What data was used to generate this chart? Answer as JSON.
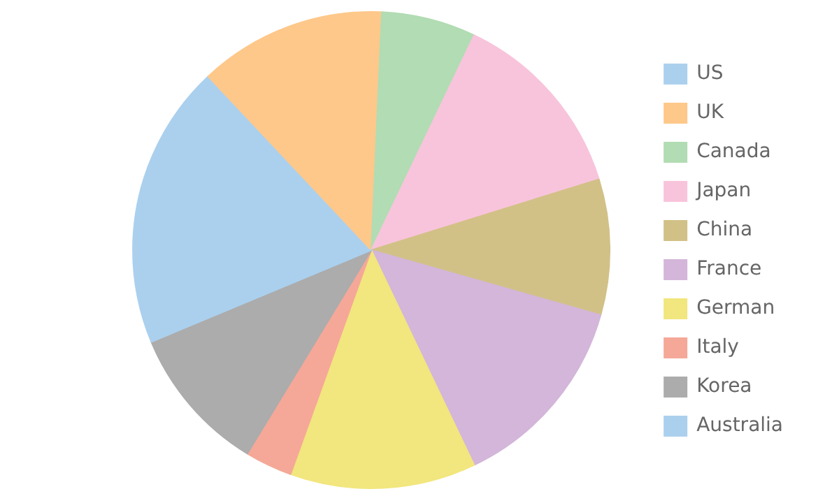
{
  "chart_data": {
    "type": "pie",
    "categories": [
      "US",
      "UK",
      "Canada",
      "Japan",
      "China",
      "France",
      "German",
      "Italy",
      "Korea",
      "Australia"
    ],
    "values": [
      13.0,
      12.7,
      6.4,
      13.1,
      9.2,
      13.5,
      12.6,
      3.2,
      10.0,
      6.3
    ],
    "colors": [
      "#abd0ee",
      "#fec88a",
      "#b2dcb3",
      "#f8c4db",
      "#d2c187",
      "#d3b6d9",
      "#f2e67e",
      "#f5a898",
      "#acacac",
      "#abd0ee"
    ],
    "legend": "right"
  }
}
